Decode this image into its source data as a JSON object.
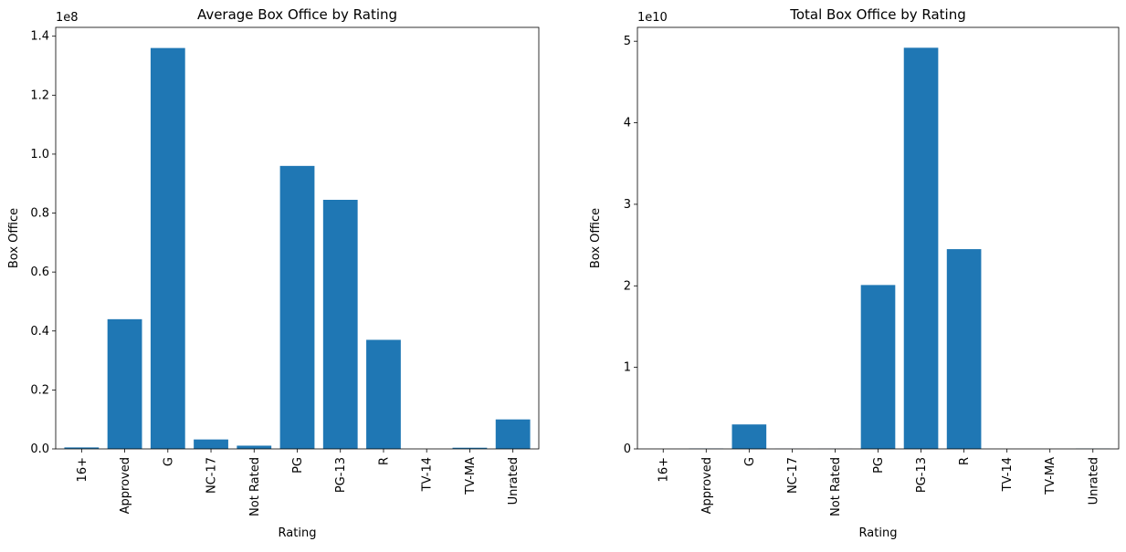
{
  "chart_data": [
    {
      "type": "bar",
      "title": "Average Box Office by Rating",
      "xlabel": "Rating",
      "ylabel": "Box Office",
      "y_offset_text": "1e8",
      "categories": [
        "16+",
        "Approved",
        "G",
        "NC-17",
        "Not Rated",
        "PG",
        "PG-13",
        "R",
        "TV-14",
        "TV-MA",
        "Unrated"
      ],
      "values": [
        500000,
        44000000,
        136000000,
        3200000,
        1100000,
        96000000,
        84500000,
        37000000,
        0,
        400000,
        10000000
      ],
      "ylim": [
        0,
        143000000
      ],
      "yticks": [
        0,
        20000000,
        40000000,
        60000000,
        80000000,
        100000000,
        120000000,
        140000000
      ],
      "ytick_labels": [
        "0.0",
        "0.2",
        "0.4",
        "0.6",
        "0.8",
        "1.0",
        "1.2",
        "1.4"
      ],
      "bar_color": "#1f77b4",
      "grid": false,
      "legend": "none"
    },
    {
      "type": "bar",
      "title": "Total Box Office by Rating",
      "xlabel": "Rating",
      "ylabel": "Box Office",
      "y_offset_text": "1e10",
      "categories": [
        "16+",
        "Approved",
        "G",
        "NC-17",
        "Not Rated",
        "PG",
        "PG-13",
        "R",
        "TV-14",
        "TV-MA",
        "Unrated"
      ],
      "values": [
        0,
        40000000,
        3000000000,
        10000000,
        10000000,
        20100000000,
        49200000000,
        24500000000,
        0,
        0,
        30000000
      ],
      "ylim": [
        0,
        51700000000
      ],
      "yticks": [
        0,
        10000000000,
        20000000000,
        30000000000,
        40000000000,
        50000000000
      ],
      "ytick_labels": [
        "0",
        "1",
        "2",
        "3",
        "4",
        "5"
      ],
      "bar_color": "#1f77b4",
      "grid": false,
      "legend": "none"
    }
  ]
}
